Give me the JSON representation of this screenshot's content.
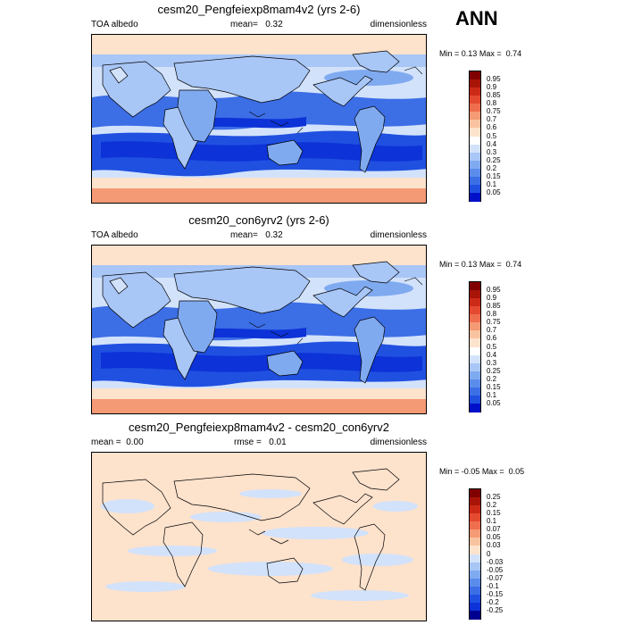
{
  "season": "ANN",
  "colors": {
    "scale": [
      "#00008f",
      "#0010c8",
      "#0c32d8",
      "#2050e0",
      "#3c6ee6",
      "#5c8ceb",
      "#80aaf0",
      "#a8c6f6",
      "#d2e2fb",
      "#ffffff",
      "#fde2cc",
      "#f9c2a0",
      "#f49a74",
      "#ee6e4e",
      "#e44a30",
      "#cc2a18",
      "#a81408",
      "#800000"
    ],
    "land_outline": "#000000"
  },
  "panels": [
    {
      "title": "cesm20_Pengfeiexp8mam4v2 (yrs 2-6)",
      "left_label": "TOA albedo",
      "mean_label": "mean=",
      "mean_value": "0.32",
      "right_label": "dimensionless",
      "min_label": "Min =",
      "min_value": "0.13",
      "max_label": "Max =",
      "max_value": "0.74",
      "levels": [
        "0.95",
        "0.9",
        "0.85",
        "0.8",
        "0.75",
        "0.7",
        "0.6",
        "0.5",
        "0.4",
        "0.3",
        "0.25",
        "0.2",
        "0.15",
        "0.1",
        "0.05"
      ]
    },
    {
      "title": "cesm20_con6yrv2 (yrs 2-6)",
      "left_label": "TOA albedo",
      "mean_label": "mean=",
      "mean_value": "0.32",
      "right_label": "dimensionless",
      "min_label": "Min =",
      "min_value": "0.13",
      "max_label": "Max =",
      "max_value": "0.74",
      "levels": [
        "0.95",
        "0.9",
        "0.85",
        "0.8",
        "0.75",
        "0.7",
        "0.6",
        "0.5",
        "0.4",
        "0.3",
        "0.25",
        "0.2",
        "0.15",
        "0.1",
        "0.05"
      ]
    },
    {
      "title": "cesm20_Pengfeiexp8mam4v2 - cesm20_con6yrv2",
      "left_label": "mean =",
      "left_value": "0.00",
      "rmse_label": "rmse =",
      "rmse_value": "0.01",
      "right_label": "dimensionless",
      "min_label": "Min =",
      "min_value": "-0.05",
      "max_label": "Max =",
      "max_value": "0.05",
      "levels": [
        "0.25",
        "0.2",
        "0.15",
        "0.1",
        "0.07",
        "0.05",
        "0.03",
        "0",
        "-0.03",
        "-0.05",
        "-0.07",
        "-0.1",
        "-0.15",
        "-0.2",
        "-0.25"
      ]
    }
  ]
}
